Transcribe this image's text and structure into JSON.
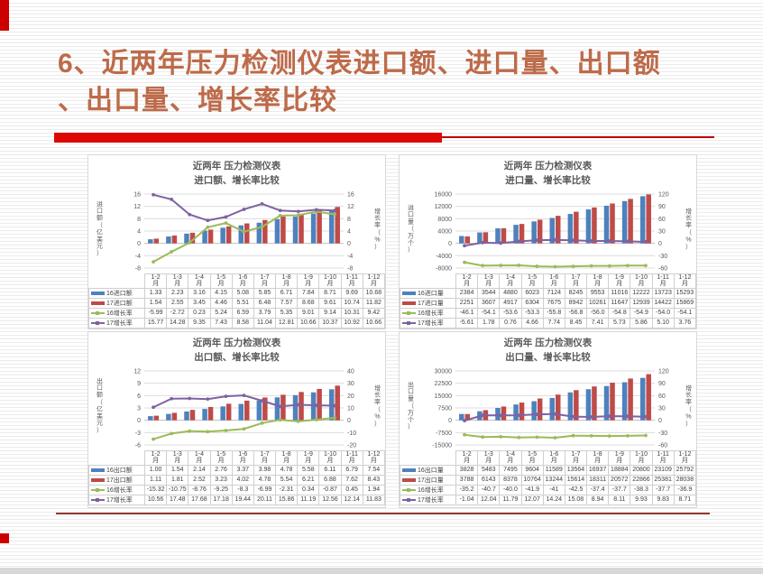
{
  "slide": {
    "title_line1": "6、近两年压力检测仪表进口额、进口量、出口额",
    "title_line2": "、出口量、增长率比较",
    "title_color": "#bd6b4a",
    "accent_bar_color": "#dd0806",
    "bottom_rule_color": "#943634"
  },
  "chart_data": [
    {
      "type": "bar",
      "subtype": "combo-bar-line",
      "title_line1": "近两年 压力检测仪表",
      "title_line2": "进口额、增长率比较",
      "grid": true,
      "legend_position": "table-left",
      "categories": [
        "1-2",
        "1-3",
        "1-4",
        "1-5",
        "1-6",
        "1-7",
        "1-8",
        "1-9",
        "1-10",
        "1-11",
        "1-12"
      ],
      "category_suffix": "月",
      "left_axis": {
        "label": "进口额（亿美元）",
        "min": -8,
        "max": 16,
        "step": 4
      },
      "right_axis": {
        "label": "增长率（%）",
        "min": -8,
        "max": 16,
        "step": 4
      },
      "series": [
        {
          "name": "16进口额",
          "type": "bar",
          "axis": "left",
          "color": "#4E81BD",
          "values": [
            "1.33",
            "2.23",
            "3.16",
            "4.15",
            "5.08",
            "5.85",
            "6.71",
            "7.84",
            "8.71",
            "9.69",
            "10.68"
          ]
        },
        {
          "name": "17进口额",
          "type": "bar",
          "axis": "left",
          "color": "#BE4B48",
          "values": [
            "1.54",
            "2.55",
            "3.45",
            "4.46",
            "5.51",
            "6.48",
            "7.57",
            "8.68",
            "9.61",
            "10.74",
            "11.82"
          ]
        },
        {
          "name": "16增长率",
          "type": "line",
          "axis": "right",
          "color": "#9BBB59",
          "values": [
            "-5.99",
            "-2.72",
            "0.23",
            "5.24",
            "6.59",
            "3.79",
            "5.35",
            "9.01",
            "9.14",
            "10.31",
            "9.42"
          ]
        },
        {
          "name": "17增长率",
          "type": "line",
          "axis": "right",
          "color": "#7E62A1",
          "values": [
            "15.77",
            "14.28",
            "9.35",
            "7.43",
            "8.58",
            "11.04",
            "12.81",
            "10.66",
            "10.37",
            "10.92",
            "10.66"
          ]
        }
      ]
    },
    {
      "type": "bar",
      "subtype": "combo-bar-line",
      "title_line1": "近两年 压力检测仪表",
      "title_line2": "进口量、增长率比较",
      "grid": true,
      "legend_position": "table-left",
      "categories": [
        "1-2",
        "1-3",
        "1-4",
        "1-5",
        "1-6",
        "1-7",
        "1-8",
        "1-9",
        "1-10",
        "1-11",
        "1-12"
      ],
      "category_suffix": "月",
      "left_axis": {
        "label": "进口量（万个）",
        "min": -8000,
        "max": 16000,
        "step": 4000
      },
      "right_axis": {
        "label": "增长率（%）",
        "min": -60,
        "max": 120,
        "step": 30
      },
      "series": [
        {
          "name": "16进口量",
          "type": "bar",
          "axis": "left",
          "color": "#4E81BD",
          "values": [
            "2384",
            "3544",
            "4880",
            "6023",
            "7124",
            "8245",
            "9553",
            "11016",
            "12222",
            "13723",
            "15293"
          ]
        },
        {
          "name": "17进口量",
          "type": "bar",
          "axis": "left",
          "color": "#BE4B48",
          "values": [
            "2251",
            "3607",
            "4917",
            "6304",
            "7675",
            "8942",
            "10261",
            "11647",
            "12939",
            "14422",
            "15869"
          ]
        },
        {
          "name": "16增长率",
          "type": "line",
          "axis": "right",
          "color": "#9BBB59",
          "values": [
            "-46.1",
            "-54.1",
            "-53.6",
            "-53.3",
            "-55.8",
            "-56.8",
            "-56.0",
            "-54.8",
            "-54.9",
            "-54.0",
            "-54.1"
          ]
        },
        {
          "name": "17增长率",
          "type": "line",
          "axis": "right",
          "color": "#7E62A1",
          "values": [
            "-5.61",
            "1.78",
            "0.76",
            "4.66",
            "7.74",
            "8.45",
            "7.41",
            "5.73",
            "5.86",
            "5.10",
            "3.76"
          ]
        }
      ]
    },
    {
      "type": "bar",
      "subtype": "combo-bar-line",
      "title_line1": "近两年 压力检测仪表",
      "title_line2": "出口额、增长率比较",
      "grid": true,
      "legend_position": "table-left",
      "categories": [
        "1-2",
        "1-3",
        "1-4",
        "1-5",
        "1-6",
        "1-7",
        "1-8",
        "1-9",
        "1-10",
        "1-11",
        "1-12"
      ],
      "category_suffix": "月",
      "left_axis": {
        "label": "出口额（亿美元）",
        "min": -6,
        "max": 12,
        "step": 3
      },
      "right_axis": {
        "label": "增长率（%）",
        "min": -20,
        "max": 40,
        "step": 10
      },
      "series": [
        {
          "name": "16出口额",
          "type": "bar",
          "axis": "left",
          "color": "#4E81BD",
          "values": [
            "1.00",
            "1.54",
            "2.14",
            "2.76",
            "3.37",
            "3.98",
            "4.78",
            "5.58",
            "6.11",
            "6.79",
            "7.54"
          ]
        },
        {
          "name": "17出口额",
          "type": "bar",
          "axis": "left",
          "color": "#BE4B48",
          "values": [
            "1.11",
            "1.81",
            "2.52",
            "3.23",
            "4.02",
            "4.78",
            "5.54",
            "6.21",
            "6.88",
            "7.62",
            "8.43"
          ]
        },
        {
          "name": "16增长率",
          "type": "line",
          "axis": "right",
          "color": "#9BBB59",
          "values": [
            "-15.32",
            "-10.75",
            "-8.76",
            "-9.25",
            "-8.3",
            "-6.99",
            "-2.31",
            "0.34",
            "-0.87",
            "0.45",
            "1.94"
          ]
        },
        {
          "name": "17增长率",
          "type": "line",
          "axis": "right",
          "color": "#7E62A1",
          "values": [
            "10.56",
            "17.48",
            "17.68",
            "17.18",
            "19.44",
            "20.11",
            "15.86",
            "11.19",
            "12.56",
            "12.14",
            "11.83"
          ]
        }
      ]
    },
    {
      "type": "bar",
      "subtype": "combo-bar-line",
      "title_line1": "近两年 压力检测仪表",
      "title_line2": "出口量、增长率比较",
      "grid": true,
      "legend_position": "table-left",
      "categories": [
        "1-2",
        "1-3",
        "1-4",
        "1-5",
        "1-6",
        "1-7",
        "1-8",
        "1-9",
        "1-10",
        "1-11",
        "1-12"
      ],
      "category_suffix": "月",
      "left_axis": {
        "label": "出口量（万个）",
        "min": -15000,
        "max": 30000,
        "step": 7500
      },
      "right_axis": {
        "label": "增长率（%）",
        "min": -60,
        "max": 120,
        "step": 30
      },
      "series": [
        {
          "name": "16出口量",
          "type": "bar",
          "axis": "left",
          "color": "#4E81BD",
          "values": [
            "3828",
            "5483",
            "7495",
            "9604",
            "11589",
            "13564",
            "16937",
            "18884",
            "20800",
            "23109",
            "25792"
          ]
        },
        {
          "name": "17出口量",
          "type": "bar",
          "axis": "left",
          "color": "#BE4B48",
          "values": [
            "3788",
            "6143",
            "8378",
            "10764",
            "13244",
            "15614",
            "18311",
            "20572",
            "22866",
            "25381",
            "28038"
          ]
        },
        {
          "name": "16增长率",
          "type": "line",
          "axis": "right",
          "color": "#9BBB59",
          "values": [
            "-35.2",
            "-40.7",
            "-40.0",
            "-41.9",
            "-41",
            "-42.5",
            "-37.4",
            "-37.7",
            "-38.3",
            "-37.7",
            "-36.9"
          ]
        },
        {
          "name": "17增长率",
          "type": "line",
          "axis": "right",
          "color": "#7E62A1",
          "values": [
            "-1.04",
            "12.04",
            "11.79",
            "12.07",
            "14.24",
            "15.08",
            "8.94",
            "8.11",
            "9.93",
            "9.83",
            "8.71"
          ]
        }
      ]
    }
  ]
}
